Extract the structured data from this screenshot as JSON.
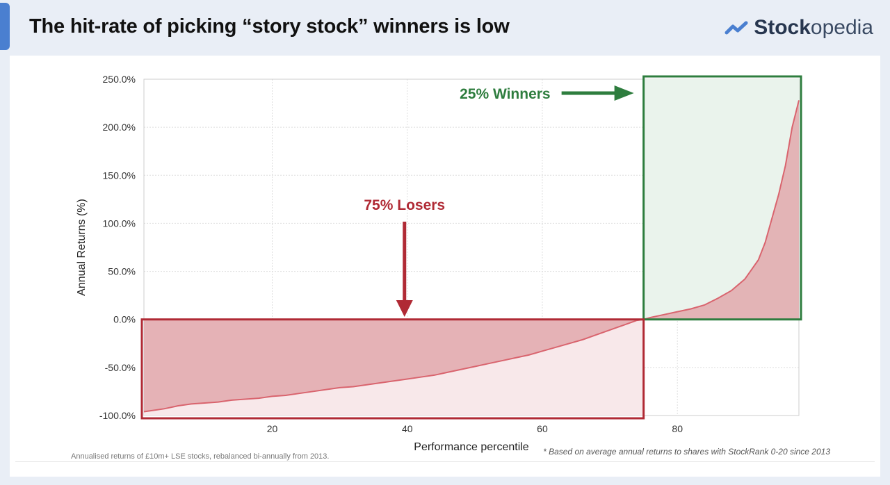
{
  "header": {
    "title": "The hit-rate of picking “story stock” winners is low",
    "logo_part1": "Stock",
    "logo_part2": "opedia",
    "logo_icon": "trend-line-icon",
    "accent_color": "#4a7fd0"
  },
  "chart_data": {
    "type": "area",
    "xlabel": "Performance percentile",
    "ylabel": "Annual Returns (%)",
    "xlim": [
      1,
      98
    ],
    "ylim": [
      -100,
      250
    ],
    "x_ticks": [
      "20",
      "40",
      "60",
      "80"
    ],
    "x_tick_values": [
      20,
      40,
      60,
      80
    ],
    "y_ticks": [
      "250.0%",
      "200.0%",
      "150.0%",
      "100.0%",
      "50.0%",
      "0.0%",
      "-50.0%",
      "-100.0%"
    ],
    "y_tick_values": [
      250,
      200,
      150,
      100,
      50,
      0,
      -50,
      -100
    ],
    "grid": true,
    "x": [
      1,
      2,
      4,
      6,
      8,
      10,
      12,
      14,
      16,
      18,
      20,
      22,
      24,
      26,
      28,
      30,
      32,
      34,
      36,
      38,
      40,
      42,
      44,
      46,
      48,
      50,
      52,
      54,
      56,
      58,
      60,
      62,
      64,
      66,
      68,
      70,
      72,
      74,
      75,
      76,
      78,
      80,
      82,
      84,
      86,
      88,
      89,
      90,
      91,
      92,
      93,
      94,
      95,
      96,
      97,
      98
    ],
    "y": [
      -96,
      -95,
      -93,
      -90,
      -88,
      -87,
      -86,
      -84,
      -83,
      -82,
      -80,
      -79,
      -77,
      -75,
      -73,
      -71,
      -70,
      -68,
      -66,
      -64,
      -62,
      -60,
      -58,
      -55,
      -52,
      -49,
      -46,
      -43,
      -40,
      -37,
      -33,
      -29,
      -25,
      -21,
      -16,
      -11,
      -6,
      -1,
      0,
      2,
      5,
      8,
      11,
      15,
      22,
      30,
      36,
      42,
      52,
      62,
      80,
      105,
      130,
      160,
      200,
      228
    ],
    "colors": {
      "line": "#d9646e",
      "fill": "#e2a8ad",
      "winners": "#2e7d3e",
      "losers": "#b02a35"
    },
    "annotations": {
      "winners": {
        "label": "25% Winners",
        "x_range": [
          75,
          98
        ],
        "y_range": [
          0,
          250
        ]
      },
      "losers": {
        "label": "75% Losers",
        "x_range": [
          1,
          75
        ],
        "y_range": [
          -100,
          0
        ]
      }
    }
  },
  "footer": {
    "caption_left": "Annualised returns of £10m+ LSE stocks, rebalanced bi-annually from 2013.",
    "caption_right": "* Based on average annual returns to shares with StockRank 0-20 since 2013"
  }
}
